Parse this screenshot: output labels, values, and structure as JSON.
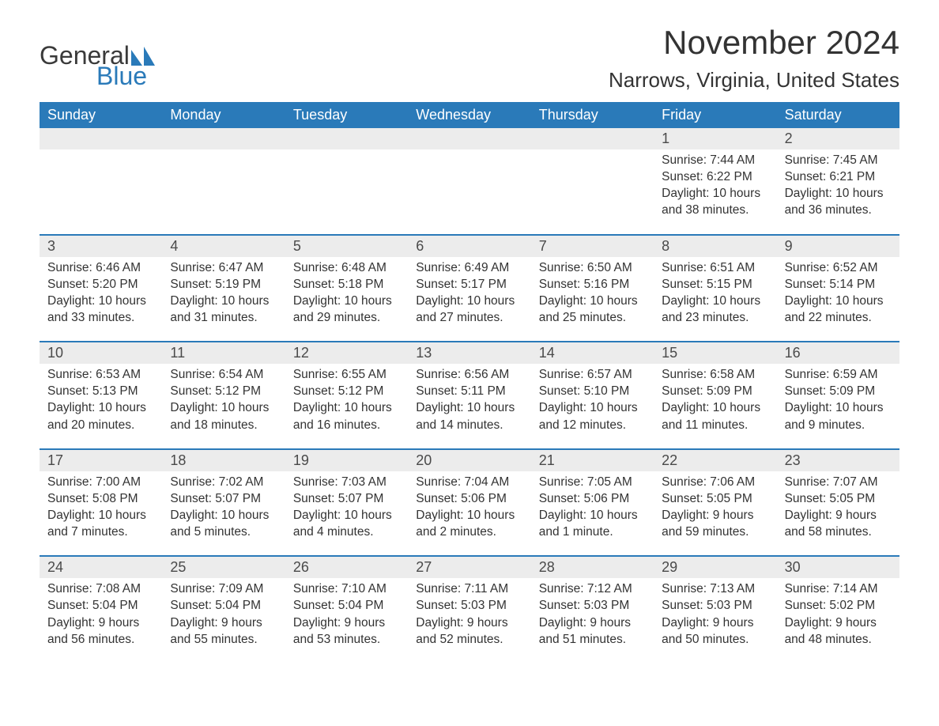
{
  "logo": {
    "text_top": "General",
    "text_bottom": "Blue",
    "icon_color": "#2a7ab9",
    "text_top_color": "#3a3a3a",
    "text_bottom_color": "#2a7ab9"
  },
  "title": "November 2024",
  "location": "Narrows, Virginia, United States",
  "colors": {
    "header_bg": "#2a7ab9",
    "header_text": "#ffffff",
    "day_number_bg": "#ececec",
    "week_border": "#2a7ab9",
    "body_text": "#333333",
    "page_bg": "#ffffff"
  },
  "weekdays": [
    "Sunday",
    "Monday",
    "Tuesday",
    "Wednesday",
    "Thursday",
    "Friday",
    "Saturday"
  ],
  "weeks": [
    [
      {
        "empty": true
      },
      {
        "empty": true
      },
      {
        "empty": true
      },
      {
        "empty": true
      },
      {
        "empty": true
      },
      {
        "day": "1",
        "sunrise": "Sunrise: 7:44 AM",
        "sunset": "Sunset: 6:22 PM",
        "daylight1": "Daylight: 10 hours",
        "daylight2": "and 38 minutes."
      },
      {
        "day": "2",
        "sunrise": "Sunrise: 7:45 AM",
        "sunset": "Sunset: 6:21 PM",
        "daylight1": "Daylight: 10 hours",
        "daylight2": "and 36 minutes."
      }
    ],
    [
      {
        "day": "3",
        "sunrise": "Sunrise: 6:46 AM",
        "sunset": "Sunset: 5:20 PM",
        "daylight1": "Daylight: 10 hours",
        "daylight2": "and 33 minutes."
      },
      {
        "day": "4",
        "sunrise": "Sunrise: 6:47 AM",
        "sunset": "Sunset: 5:19 PM",
        "daylight1": "Daylight: 10 hours",
        "daylight2": "and 31 minutes."
      },
      {
        "day": "5",
        "sunrise": "Sunrise: 6:48 AM",
        "sunset": "Sunset: 5:18 PM",
        "daylight1": "Daylight: 10 hours",
        "daylight2": "and 29 minutes."
      },
      {
        "day": "6",
        "sunrise": "Sunrise: 6:49 AM",
        "sunset": "Sunset: 5:17 PM",
        "daylight1": "Daylight: 10 hours",
        "daylight2": "and 27 minutes."
      },
      {
        "day": "7",
        "sunrise": "Sunrise: 6:50 AM",
        "sunset": "Sunset: 5:16 PM",
        "daylight1": "Daylight: 10 hours",
        "daylight2": "and 25 minutes."
      },
      {
        "day": "8",
        "sunrise": "Sunrise: 6:51 AM",
        "sunset": "Sunset: 5:15 PM",
        "daylight1": "Daylight: 10 hours",
        "daylight2": "and 23 minutes."
      },
      {
        "day": "9",
        "sunrise": "Sunrise: 6:52 AM",
        "sunset": "Sunset: 5:14 PM",
        "daylight1": "Daylight: 10 hours",
        "daylight2": "and 22 minutes."
      }
    ],
    [
      {
        "day": "10",
        "sunrise": "Sunrise: 6:53 AM",
        "sunset": "Sunset: 5:13 PM",
        "daylight1": "Daylight: 10 hours",
        "daylight2": "and 20 minutes."
      },
      {
        "day": "11",
        "sunrise": "Sunrise: 6:54 AM",
        "sunset": "Sunset: 5:12 PM",
        "daylight1": "Daylight: 10 hours",
        "daylight2": "and 18 minutes."
      },
      {
        "day": "12",
        "sunrise": "Sunrise: 6:55 AM",
        "sunset": "Sunset: 5:12 PM",
        "daylight1": "Daylight: 10 hours",
        "daylight2": "and 16 minutes."
      },
      {
        "day": "13",
        "sunrise": "Sunrise: 6:56 AM",
        "sunset": "Sunset: 5:11 PM",
        "daylight1": "Daylight: 10 hours",
        "daylight2": "and 14 minutes."
      },
      {
        "day": "14",
        "sunrise": "Sunrise: 6:57 AM",
        "sunset": "Sunset: 5:10 PM",
        "daylight1": "Daylight: 10 hours",
        "daylight2": "and 12 minutes."
      },
      {
        "day": "15",
        "sunrise": "Sunrise: 6:58 AM",
        "sunset": "Sunset: 5:09 PM",
        "daylight1": "Daylight: 10 hours",
        "daylight2": "and 11 minutes."
      },
      {
        "day": "16",
        "sunrise": "Sunrise: 6:59 AM",
        "sunset": "Sunset: 5:09 PM",
        "daylight1": "Daylight: 10 hours",
        "daylight2": "and 9 minutes."
      }
    ],
    [
      {
        "day": "17",
        "sunrise": "Sunrise: 7:00 AM",
        "sunset": "Sunset: 5:08 PM",
        "daylight1": "Daylight: 10 hours",
        "daylight2": "and 7 minutes."
      },
      {
        "day": "18",
        "sunrise": "Sunrise: 7:02 AM",
        "sunset": "Sunset: 5:07 PM",
        "daylight1": "Daylight: 10 hours",
        "daylight2": "and 5 minutes."
      },
      {
        "day": "19",
        "sunrise": "Sunrise: 7:03 AM",
        "sunset": "Sunset: 5:07 PM",
        "daylight1": "Daylight: 10 hours",
        "daylight2": "and 4 minutes."
      },
      {
        "day": "20",
        "sunrise": "Sunrise: 7:04 AM",
        "sunset": "Sunset: 5:06 PM",
        "daylight1": "Daylight: 10 hours",
        "daylight2": "and 2 minutes."
      },
      {
        "day": "21",
        "sunrise": "Sunrise: 7:05 AM",
        "sunset": "Sunset: 5:06 PM",
        "daylight1": "Daylight: 10 hours",
        "daylight2": "and 1 minute."
      },
      {
        "day": "22",
        "sunrise": "Sunrise: 7:06 AM",
        "sunset": "Sunset: 5:05 PM",
        "daylight1": "Daylight: 9 hours",
        "daylight2": "and 59 minutes."
      },
      {
        "day": "23",
        "sunrise": "Sunrise: 7:07 AM",
        "sunset": "Sunset: 5:05 PM",
        "daylight1": "Daylight: 9 hours",
        "daylight2": "and 58 minutes."
      }
    ],
    [
      {
        "day": "24",
        "sunrise": "Sunrise: 7:08 AM",
        "sunset": "Sunset: 5:04 PM",
        "daylight1": "Daylight: 9 hours",
        "daylight2": "and 56 minutes."
      },
      {
        "day": "25",
        "sunrise": "Sunrise: 7:09 AM",
        "sunset": "Sunset: 5:04 PM",
        "daylight1": "Daylight: 9 hours",
        "daylight2": "and 55 minutes."
      },
      {
        "day": "26",
        "sunrise": "Sunrise: 7:10 AM",
        "sunset": "Sunset: 5:04 PM",
        "daylight1": "Daylight: 9 hours",
        "daylight2": "and 53 minutes."
      },
      {
        "day": "27",
        "sunrise": "Sunrise: 7:11 AM",
        "sunset": "Sunset: 5:03 PM",
        "daylight1": "Daylight: 9 hours",
        "daylight2": "and 52 minutes."
      },
      {
        "day": "28",
        "sunrise": "Sunrise: 7:12 AM",
        "sunset": "Sunset: 5:03 PM",
        "daylight1": "Daylight: 9 hours",
        "daylight2": "and 51 minutes."
      },
      {
        "day": "29",
        "sunrise": "Sunrise: 7:13 AM",
        "sunset": "Sunset: 5:03 PM",
        "daylight1": "Daylight: 9 hours",
        "daylight2": "and 50 minutes."
      },
      {
        "day": "30",
        "sunrise": "Sunrise: 7:14 AM",
        "sunset": "Sunset: 5:02 PM",
        "daylight1": "Daylight: 9 hours",
        "daylight2": "and 48 minutes."
      }
    ]
  ]
}
